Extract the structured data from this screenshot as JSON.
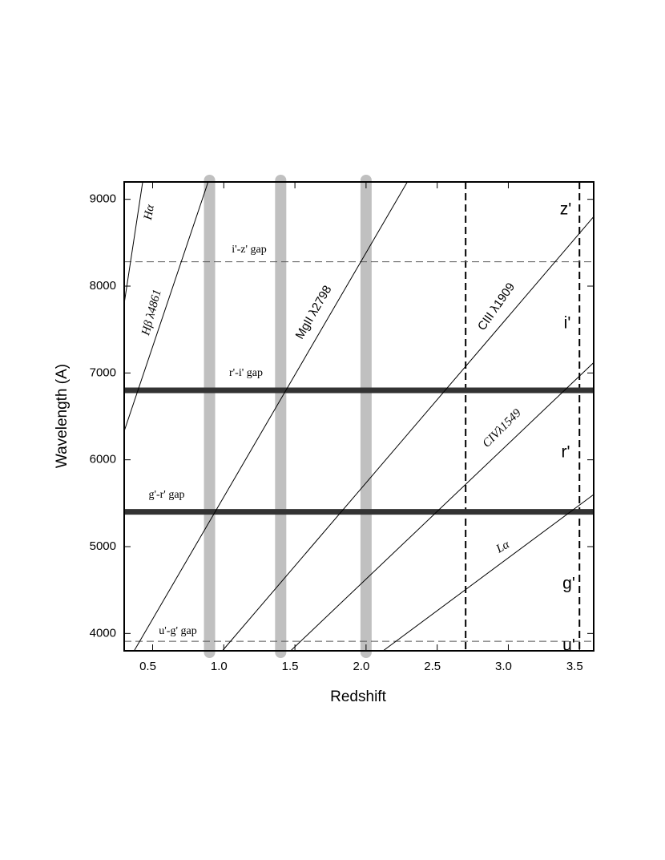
{
  "chart_data": {
    "type": "line",
    "xlabel": "Redshift",
    "ylabel": "Wavelength (A)",
    "xlim": [
      0.3,
      3.6
    ],
    "ylim": [
      3800,
      9200
    ],
    "xticks": [
      0.5,
      {
        "value": 1,
        "label": "1.0"
      },
      1.5,
      {
        "value": 2,
        "label": "2.0"
      },
      2.5,
      {
        "value": 3,
        "label": "3.0"
      },
      3.5
    ],
    "yticks": [
      4000,
      5000,
      6000,
      7000,
      8000,
      9000
    ],
    "series": [
      {
        "name": "Hα",
        "color": "#000000",
        "x": [
          0.3,
          0.43
        ],
        "values": [
          7800,
          9200
        ]
      },
      {
        "name": "Hβ λ4861",
        "color": "#000000",
        "x": [
          0.3,
          0.89
        ],
        "values": [
          6330,
          9200
        ]
      },
      {
        "name": "MgII λ2798",
        "color": "#000000",
        "x": [
          0.37,
          2.29
        ],
        "values": [
          3800,
          9200
        ]
      },
      {
        "name": "CIII λ1909",
        "color": "#000000",
        "x": [
          0.99,
          3.6
        ],
        "values": [
          3800,
          8800
        ]
      },
      {
        "name": "CIVλ1549",
        "color": "#000000",
        "x": [
          1.47,
          3.6
        ],
        "values": [
          3800,
          7120
        ]
      },
      {
        "name": "Lα",
        "color": "#000000",
        "x": [
          2.12,
          3.6
        ],
        "values": [
          3800,
          5600
        ]
      }
    ],
    "gaps": [
      {
        "label": "i'-z' gap",
        "value": 8280,
        "style": "dashed"
      },
      {
        "label": "r'-i' gap",
        "value": 6800,
        "style": "thick"
      },
      {
        "label": "g'-r' gap",
        "value": 5400,
        "style": "thick"
      },
      {
        "label": "u'-g' gap",
        "value": 3910,
        "style": "dashed"
      }
    ],
    "redshift_markers": {
      "color": "#c0c0c0",
      "values": [
        0.9,
        1.4,
        2.0
      ]
    },
    "dashed_redshifts": [
      2.7,
      3.5
    ],
    "filters": [
      "z'",
      "i'",
      "r'",
      "g'",
      "u'"
    ]
  }
}
